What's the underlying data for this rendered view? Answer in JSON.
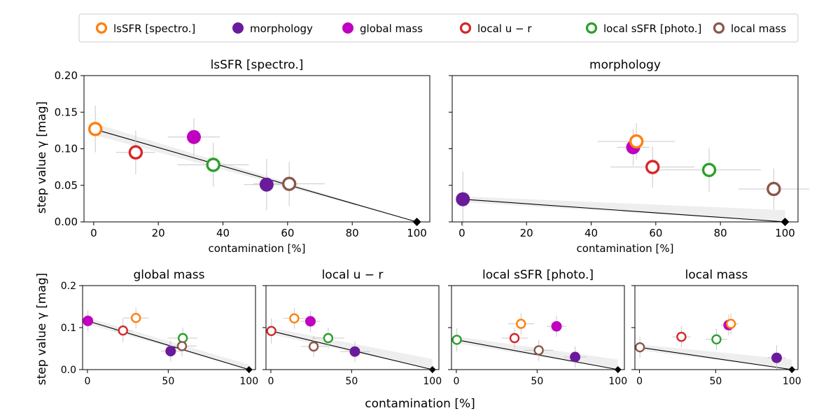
{
  "figure": {
    "ylabel": "step value γ [mag]",
    "xlabel": "contamination [%]"
  },
  "legend": {
    "placement": "top",
    "entries": [
      {
        "key": "lsSFR",
        "label": "lsSFR [spectro.]",
        "color": "#ff7f0e",
        "filled": false
      },
      {
        "key": "morph",
        "label": "morphology",
        "color": "#6a1b9a",
        "filled": true
      },
      {
        "key": "gmass",
        "label": "global mass",
        "color": "#c000c0",
        "filled": true
      },
      {
        "key": "lur",
        "label": "local u − r",
        "color": "#d62728",
        "filled": false
      },
      {
        "key": "lssfr",
        "label": "local sSFR [photo.]",
        "color": "#2ca02c",
        "filled": false
      },
      {
        "key": "lmass",
        "label": "local mass",
        "color": "#8c564b",
        "filled": false
      }
    ]
  },
  "chart_data": [
    {
      "type": "scatter",
      "id": "lsSFR",
      "title": "lsSFR [spectro.]",
      "xlabel": "contamination [%]",
      "ylabel": "step value γ [mag]",
      "xlim": [
        -3,
        104
      ],
      "ylim": [
        0,
        0.2
      ],
      "xticks": [
        0,
        20,
        40,
        60,
        80,
        100
      ],
      "yticks": [
        0.0,
        0.05,
        0.1,
        0.15,
        0.2
      ],
      "ytick_labels": [
        "0.00",
        "0.05",
        "0.10",
        "0.15",
        "0.20"
      ],
      "reference_key": "lsSFR",
      "fit_line": {
        "from": [
          0,
          0.127
        ],
        "to": [
          100,
          0.0
        ]
      },
      "band": {
        "x": [
          0,
          100
        ],
        "upper": [
          0.135,
          0.0
        ],
        "lower": [
          0.119,
          0.0
        ]
      },
      "endpoint": {
        "x": 100,
        "y": 0.0
      },
      "points": [
        {
          "key": "lsSFR",
          "x": 0.5,
          "y": 0.127,
          "xerr": 1,
          "yerr": 0.032
        },
        {
          "key": "lur",
          "x": 13,
          "y": 0.095,
          "xerr": 6,
          "yerr": 0.03
        },
        {
          "key": "gmass",
          "x": 31,
          "y": 0.116,
          "xerr": 8,
          "yerr": 0.026
        },
        {
          "key": "lssfr",
          "x": 37,
          "y": 0.078,
          "xerr": 11,
          "yerr": 0.03
        },
        {
          "key": "morph",
          "x": 53.5,
          "y": 0.051,
          "xerr": 7,
          "yerr": 0.035
        },
        {
          "key": "lmass",
          "x": 60.5,
          "y": 0.052,
          "xerr": 11,
          "yerr": 0.03
        }
      ]
    },
    {
      "type": "scatter",
      "id": "morph",
      "title": "morphology",
      "xlabel": "contamination [%]",
      "xlim": [
        -3,
        104
      ],
      "ylim": [
        0,
        0.2
      ],
      "xticks": [
        0,
        20,
        40,
        60,
        80,
        100
      ],
      "yticks": [
        0.0,
        0.05,
        0.1,
        0.15,
        0.2
      ],
      "ytick_labels": [],
      "reference_key": "morph",
      "fit_line": {
        "from": [
          0,
          0.031
        ],
        "to": [
          100,
          0.0
        ]
      },
      "band": {
        "x": [
          0,
          100
        ],
        "upper": [
          0.035,
          0.016
        ],
        "lower": [
          0.027,
          0.0
        ]
      },
      "endpoint": {
        "x": 100,
        "y": 0.0
      },
      "points": [
        {
          "key": "morph",
          "x": 0.3,
          "y": 0.031,
          "xerr": 1,
          "yerr": 0.038
        },
        {
          "key": "gmass",
          "x": 53,
          "y": 0.102,
          "xerr": 5,
          "yerr": 0.025
        },
        {
          "key": "lsSFR",
          "x": 54,
          "y": 0.11,
          "xerr": 12,
          "yerr": 0.025
        },
        {
          "key": "lur",
          "x": 59,
          "y": 0.075,
          "xerr": 13,
          "yerr": 0.028
        },
        {
          "key": "lssfr",
          "x": 76.5,
          "y": 0.071,
          "xerr": 16,
          "yerr": 0.03
        },
        {
          "key": "lmass",
          "x": 96.5,
          "y": 0.045,
          "xerr": 11,
          "yerr": 0.028
        }
      ]
    },
    {
      "type": "scatter",
      "id": "gmass",
      "title": "global mass",
      "xlabel": "",
      "ylabel": "step value γ [mag]",
      "xlim": [
        -3,
        104
      ],
      "ylim": [
        0,
        0.2
      ],
      "xticks": [
        0,
        50,
        100
      ],
      "yticks": [
        0.0,
        0.1,
        0.2
      ],
      "ytick_labels": [
        "0.0",
        "0.1",
        "0.2"
      ],
      "reference_key": "gmass",
      "fit_line": {
        "from": [
          0,
          0.116
        ],
        "to": [
          100,
          0.0
        ]
      },
      "band": {
        "x": [
          0,
          100
        ],
        "upper": [
          0.124,
          0.012
        ],
        "lower": [
          0.108,
          0.0
        ]
      },
      "endpoint": {
        "x": 100,
        "y": 0.0
      },
      "points": [
        {
          "key": "gmass",
          "x": 0.3,
          "y": 0.116,
          "xerr": 1,
          "yerr": 0.025
        },
        {
          "key": "lur",
          "x": 22,
          "y": 0.093,
          "xerr": 6,
          "yerr": 0.028
        },
        {
          "key": "lsSFR",
          "x": 30,
          "y": 0.123,
          "xerr": 8,
          "yerr": 0.025
        },
        {
          "key": "morph",
          "x": 51.5,
          "y": 0.044,
          "xerr": 6,
          "yerr": 0.025
        },
        {
          "key": "lssfr",
          "x": 59,
          "y": 0.075,
          "xerr": 9,
          "yerr": 0.025
        },
        {
          "key": "lmass",
          "x": 58.5,
          "y": 0.056,
          "xerr": 9,
          "yerr": 0.025
        }
      ]
    },
    {
      "type": "scatter",
      "id": "lur",
      "title": "local u − r",
      "xlabel": "",
      "xlim": [
        -3,
        104
      ],
      "ylim": [
        0,
        0.2
      ],
      "xticks": [
        0,
        50,
        100
      ],
      "yticks": [
        0.0,
        0.1,
        0.2
      ],
      "ytick_labels": [],
      "reference_key": "lur",
      "fit_line": {
        "from": [
          0,
          0.092
        ],
        "to": [
          100,
          0.0
        ]
      },
      "band": {
        "x": [
          0,
          100
        ],
        "upper": [
          0.1,
          0.025
        ],
        "lower": [
          0.084,
          0.0
        ]
      },
      "endpoint": {
        "x": 100,
        "y": 0.0
      },
      "points": [
        {
          "key": "lur",
          "x": 0.3,
          "y": 0.092,
          "xerr": 1,
          "yerr": 0.03
        },
        {
          "key": "lsSFR",
          "x": 14.5,
          "y": 0.122,
          "xerr": 7,
          "yerr": 0.025
        },
        {
          "key": "gmass",
          "x": 24.5,
          "y": 0.115,
          "xerr": 6,
          "yerr": 0.025
        },
        {
          "key": "lmass",
          "x": 26.5,
          "y": 0.055,
          "xerr": 8,
          "yerr": 0.025
        },
        {
          "key": "lssfr",
          "x": 35.5,
          "y": 0.075,
          "xerr": 10,
          "yerr": 0.025
        },
        {
          "key": "morph",
          "x": 52,
          "y": 0.043,
          "xerr": 9,
          "yerr": 0.025
        }
      ]
    },
    {
      "type": "scatter",
      "id": "lssfr",
      "title": "local sSFR [photo.]",
      "xlabel": "",
      "ylabel": "",
      "xlim": [
        -3,
        104
      ],
      "ylim": [
        0,
        0.2
      ],
      "xticks": [
        0,
        50,
        100
      ],
      "yticks": [
        0.0,
        0.1,
        0.2
      ],
      "ytick_labels": [],
      "reference_key": "lssfr",
      "fit_line": {
        "from": [
          0,
          0.071
        ],
        "to": [
          100,
          0.0
        ]
      },
      "band": {
        "x": [
          0,
          100
        ],
        "upper": [
          0.079,
          0.024
        ],
        "lower": [
          0.063,
          0.0
        ]
      },
      "endpoint": {
        "x": 100,
        "y": 0.0
      },
      "points": [
        {
          "key": "lssfr",
          "x": 0.3,
          "y": 0.071,
          "xerr": 1,
          "yerr": 0.028
        },
        {
          "key": "lur",
          "x": 36,
          "y": 0.075,
          "xerr": 8,
          "yerr": 0.025
        },
        {
          "key": "lsSFR",
          "x": 40,
          "y": 0.109,
          "xerr": 8,
          "yerr": 0.025
        },
        {
          "key": "lmass",
          "x": 51,
          "y": 0.046,
          "xerr": 9,
          "yerr": 0.025
        },
        {
          "key": "gmass",
          "x": 62,
          "y": 0.103,
          "xerr": 6,
          "yerr": 0.025
        },
        {
          "key": "morph",
          "x": 73.5,
          "y": 0.03,
          "xerr": 7,
          "yerr": 0.025
        }
      ]
    },
    {
      "type": "scatter",
      "id": "lmass",
      "title": "local mass",
      "xlabel": "",
      "xlim": [
        -3,
        104
      ],
      "ylim": [
        0,
        0.2
      ],
      "xticks": [
        0,
        50,
        100
      ],
      "yticks": [
        0.0,
        0.1,
        0.2
      ],
      "ytick_labels": [],
      "reference_key": "lmass",
      "fit_line": {
        "from": [
          0,
          0.053
        ],
        "to": [
          100,
          0.0
        ]
      },
      "band": {
        "x": [
          0,
          100
        ],
        "upper": [
          0.06,
          0.024
        ],
        "lower": [
          0.046,
          0.0
        ]
      },
      "endpoint": {
        "x": 100,
        "y": 0.0
      },
      "points": [
        {
          "key": "lmass",
          "x": 0.3,
          "y": 0.053,
          "xerr": 1,
          "yerr": 0.025
        },
        {
          "key": "lur",
          "x": 27.5,
          "y": 0.078,
          "xerr": 6,
          "yerr": 0.025
        },
        {
          "key": "lssfr",
          "x": 50.5,
          "y": 0.072,
          "xerr": 7,
          "yerr": 0.025
        },
        {
          "key": "gmass",
          "x": 58.5,
          "y": 0.106,
          "xerr": 5,
          "yerr": 0.025
        },
        {
          "key": "lsSFR",
          "x": 60,
          "y": 0.109,
          "xerr": 5,
          "yerr": 0.025
        },
        {
          "key": "morph",
          "x": 90,
          "y": 0.028,
          "xerr": 6,
          "yerr": 0.03
        }
      ]
    }
  ]
}
